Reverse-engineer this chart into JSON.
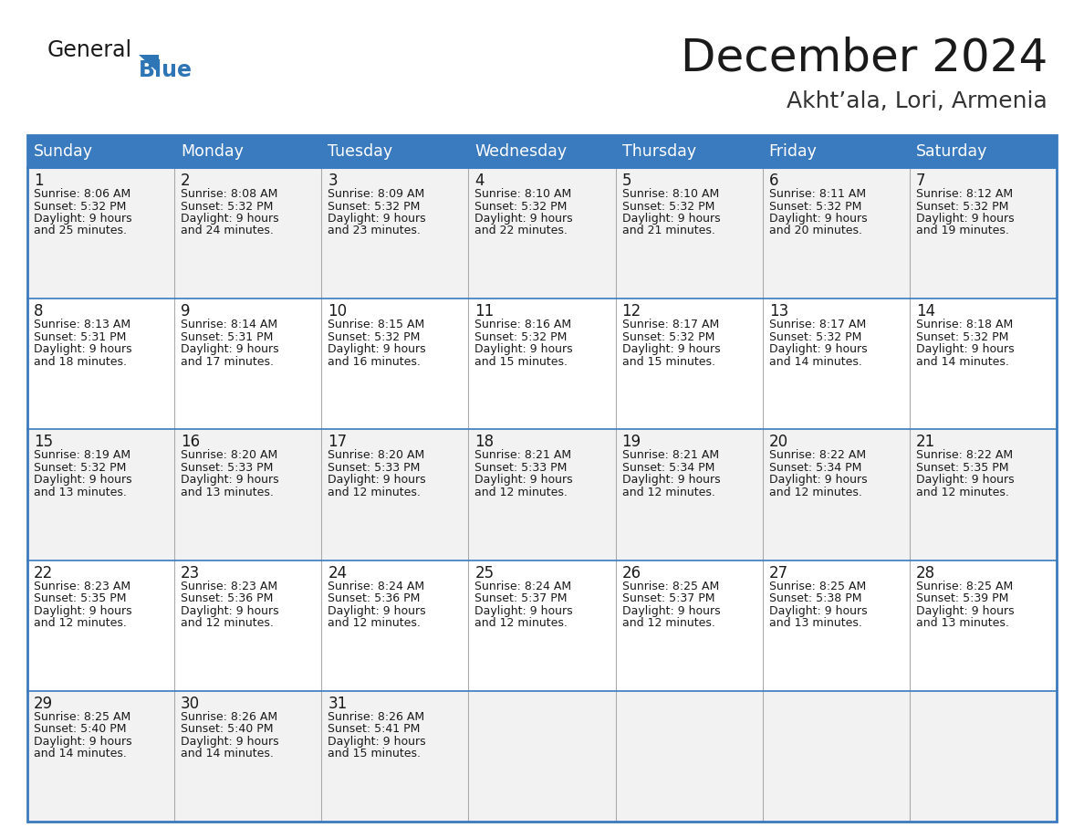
{
  "title": "December 2024",
  "subtitle": "Akht’ala, Lori, Armenia",
  "header_color": "#3a7abf",
  "header_text_color": "#ffffff",
  "border_color": "#3a7abf",
  "grid_color": "#aaaaaa",
  "cell_bg_even": "#f2f2f2",
  "cell_bg_odd": "#ffffff",
  "day_names": [
    "Sunday",
    "Monday",
    "Tuesday",
    "Wednesday",
    "Thursday",
    "Friday",
    "Saturday"
  ],
  "weeks": [
    [
      {
        "day": "1",
        "sunrise": "8:06 AM",
        "sunset": "5:32 PM",
        "daylight": "9 hours",
        "daylight2": "and 25 minutes."
      },
      {
        "day": "2",
        "sunrise": "8:08 AM",
        "sunset": "5:32 PM",
        "daylight": "9 hours",
        "daylight2": "and 24 minutes."
      },
      {
        "day": "3",
        "sunrise": "8:09 AM",
        "sunset": "5:32 PM",
        "daylight": "9 hours",
        "daylight2": "and 23 minutes."
      },
      {
        "day": "4",
        "sunrise": "8:10 AM",
        "sunset": "5:32 PM",
        "daylight": "9 hours",
        "daylight2": "and 22 minutes."
      },
      {
        "day": "5",
        "sunrise": "8:10 AM",
        "sunset": "5:32 PM",
        "daylight": "9 hours",
        "daylight2": "and 21 minutes."
      },
      {
        "day": "6",
        "sunrise": "8:11 AM",
        "sunset": "5:32 PM",
        "daylight": "9 hours",
        "daylight2": "and 20 minutes."
      },
      {
        "day": "7",
        "sunrise": "8:12 AM",
        "sunset": "5:32 PM",
        "daylight": "9 hours",
        "daylight2": "and 19 minutes."
      }
    ],
    [
      {
        "day": "8",
        "sunrise": "8:13 AM",
        "sunset": "5:31 PM",
        "daylight": "9 hours",
        "daylight2": "and 18 minutes."
      },
      {
        "day": "9",
        "sunrise": "8:14 AM",
        "sunset": "5:31 PM",
        "daylight": "9 hours",
        "daylight2": "and 17 minutes."
      },
      {
        "day": "10",
        "sunrise": "8:15 AM",
        "sunset": "5:32 PM",
        "daylight": "9 hours",
        "daylight2": "and 16 minutes."
      },
      {
        "day": "11",
        "sunrise": "8:16 AM",
        "sunset": "5:32 PM",
        "daylight": "9 hours",
        "daylight2": "and 15 minutes."
      },
      {
        "day": "12",
        "sunrise": "8:17 AM",
        "sunset": "5:32 PM",
        "daylight": "9 hours",
        "daylight2": "and 15 minutes."
      },
      {
        "day": "13",
        "sunrise": "8:17 AM",
        "sunset": "5:32 PM",
        "daylight": "9 hours",
        "daylight2": "and 14 minutes."
      },
      {
        "day": "14",
        "sunrise": "8:18 AM",
        "sunset": "5:32 PM",
        "daylight": "9 hours",
        "daylight2": "and 14 minutes."
      }
    ],
    [
      {
        "day": "15",
        "sunrise": "8:19 AM",
        "sunset": "5:32 PM",
        "daylight": "9 hours",
        "daylight2": "and 13 minutes."
      },
      {
        "day": "16",
        "sunrise": "8:20 AM",
        "sunset": "5:33 PM",
        "daylight": "9 hours",
        "daylight2": "and 13 minutes."
      },
      {
        "day": "17",
        "sunrise": "8:20 AM",
        "sunset": "5:33 PM",
        "daylight": "9 hours",
        "daylight2": "and 12 minutes."
      },
      {
        "day": "18",
        "sunrise": "8:21 AM",
        "sunset": "5:33 PM",
        "daylight": "9 hours",
        "daylight2": "and 12 minutes."
      },
      {
        "day": "19",
        "sunrise": "8:21 AM",
        "sunset": "5:34 PM",
        "daylight": "9 hours",
        "daylight2": "and 12 minutes."
      },
      {
        "day": "20",
        "sunrise": "8:22 AM",
        "sunset": "5:34 PM",
        "daylight": "9 hours",
        "daylight2": "and 12 minutes."
      },
      {
        "day": "21",
        "sunrise": "8:22 AM",
        "sunset": "5:35 PM",
        "daylight": "9 hours",
        "daylight2": "and 12 minutes."
      }
    ],
    [
      {
        "day": "22",
        "sunrise": "8:23 AM",
        "sunset": "5:35 PM",
        "daylight": "9 hours",
        "daylight2": "and 12 minutes."
      },
      {
        "day": "23",
        "sunrise": "8:23 AM",
        "sunset": "5:36 PM",
        "daylight": "9 hours",
        "daylight2": "and 12 minutes."
      },
      {
        "day": "24",
        "sunrise": "8:24 AM",
        "sunset": "5:36 PM",
        "daylight": "9 hours",
        "daylight2": "and 12 minutes."
      },
      {
        "day": "25",
        "sunrise": "8:24 AM",
        "sunset": "5:37 PM",
        "daylight": "9 hours",
        "daylight2": "and 12 minutes."
      },
      {
        "day": "26",
        "sunrise": "8:25 AM",
        "sunset": "5:37 PM",
        "daylight": "9 hours",
        "daylight2": "and 12 minutes."
      },
      {
        "day": "27",
        "sunrise": "8:25 AM",
        "sunset": "5:38 PM",
        "daylight": "9 hours",
        "daylight2": "and 13 minutes."
      },
      {
        "day": "28",
        "sunrise": "8:25 AM",
        "sunset": "5:39 PM",
        "daylight": "9 hours",
        "daylight2": "and 13 minutes."
      }
    ],
    [
      {
        "day": "29",
        "sunrise": "8:25 AM",
        "sunset": "5:40 PM",
        "daylight": "9 hours",
        "daylight2": "and 14 minutes."
      },
      {
        "day": "30",
        "sunrise": "8:26 AM",
        "sunset": "5:40 PM",
        "daylight": "9 hours",
        "daylight2": "and 14 minutes."
      },
      {
        "day": "31",
        "sunrise": "8:26 AM",
        "sunset": "5:41 PM",
        "daylight": "9 hours",
        "daylight2": "and 15 minutes."
      },
      null,
      null,
      null,
      null
    ]
  ],
  "logo_general_color": "#1a1a1a",
  "logo_blue_color": "#2e75b6",
  "logo_triangle_color": "#2e75b6",
  "title_color": "#1a1a1a",
  "subtitle_color": "#333333",
  "text_color": "#1a1a1a"
}
